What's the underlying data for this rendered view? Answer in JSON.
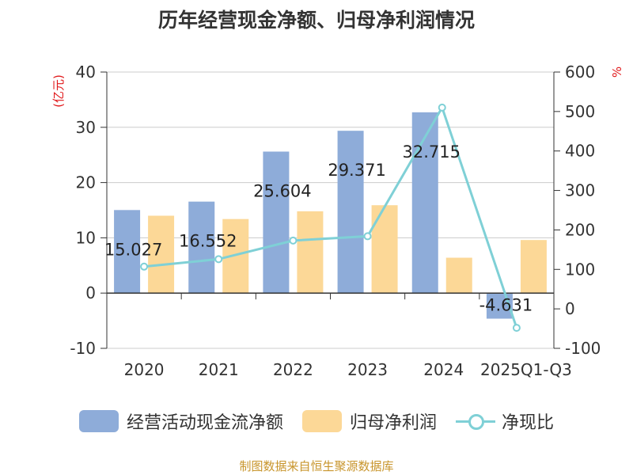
{
  "title": "历年经营现金净额、归母净利润情况",
  "source": "制图数据来自恒生聚源数据库",
  "colors": {
    "cash": "#8eacd9",
    "profit": "#fcd897",
    "ratio": "#7fd0d6",
    "unit": "#e0191b",
    "text": "#333333",
    "grid": "#cccccc",
    "axis": "#333333"
  },
  "chart_data": {
    "type": "bar",
    "categories": [
      "2020",
      "2021",
      "2022",
      "2023",
      "2024",
      "2025Q1-Q3"
    ],
    "left_axis": {
      "unit_label": "(亿元)",
      "ticks": [
        "40",
        "30",
        "20",
        "10",
        "0",
        "-10"
      ],
      "min": -10,
      "max": 40
    },
    "right_axis": {
      "unit_label": "%",
      "ticks": [
        "600",
        "500",
        "400",
        "300",
        "200",
        "100",
        "0",
        "-100"
      ],
      "min": -100,
      "max": 600
    },
    "series": [
      {
        "name": "经营活动现金流净额",
        "type": "bar",
        "axis": "left",
        "values": [
          15.027,
          16.552,
          25.604,
          29.371,
          32.715,
          -4.631
        ],
        "labels": [
          "15.027",
          "16.552",
          "25.604",
          "29.371",
          "32.715",
          "-4.631"
        ]
      },
      {
        "name": "归母净利润",
        "type": "bar",
        "axis": "left",
        "values": [
          14.0,
          13.4,
          14.8,
          15.9,
          6.4,
          9.6
        ]
      },
      {
        "name": "净现比",
        "type": "line",
        "axis": "right",
        "values": [
          107,
          126,
          173,
          184,
          510,
          -48
        ]
      }
    ]
  }
}
